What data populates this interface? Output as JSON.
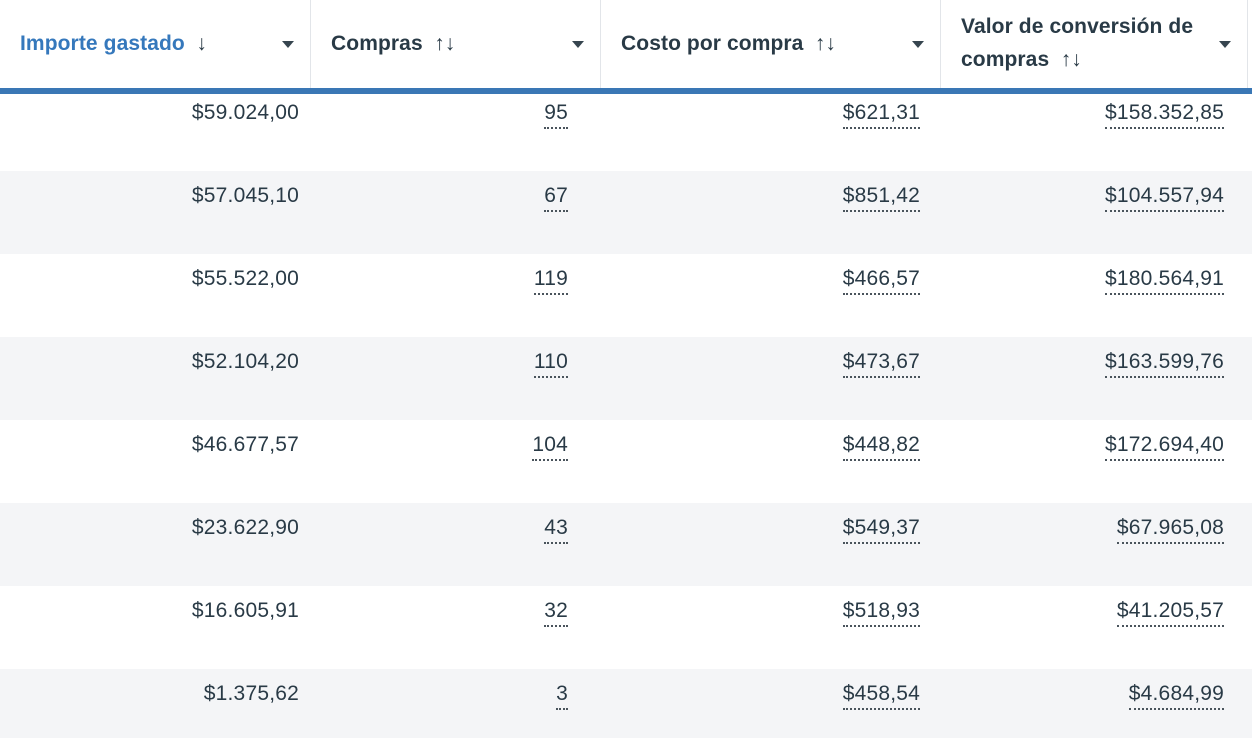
{
  "table": {
    "columns": [
      {
        "id": "importe_gastado",
        "label": "Importe gastado",
        "sort_indicator": "↓",
        "sorted": true
      },
      {
        "id": "compras",
        "label": "Compras",
        "sort_indicator": "↑↓",
        "sorted": false
      },
      {
        "id": "costo_por_compra",
        "label": "Costo por compra",
        "sort_indicator": "↑↓",
        "sorted": false
      },
      {
        "id": "valor_de_conversion_de_compras",
        "label": "Valor de conversión de compras",
        "sort_indicator": "↑↓",
        "sorted": false
      }
    ],
    "rows": [
      [
        "$59.024,00",
        "95",
        "$621,31",
        "$158.352,85"
      ],
      [
        "$57.045,10",
        "67",
        "$851,42",
        "$104.557,94"
      ],
      [
        "$55.522,00",
        "119",
        "$466,57",
        "$180.564,91"
      ],
      [
        "$52.104,20",
        "110",
        "$473,67",
        "$163.599,76"
      ],
      [
        "$46.677,57",
        "104",
        "$448,82",
        "$172.694,40"
      ],
      [
        "$23.622,90",
        "43",
        "$549,37",
        "$67.965,08"
      ],
      [
        "$16.605,91",
        "32",
        "$518,93",
        "$41.205,57"
      ],
      [
        "$1.375,62",
        "3",
        "$458,54",
        "$4.684,99"
      ]
    ]
  },
  "colors": {
    "accent_bar_blue": "#3a77b5",
    "sorted_column_blue": "#3578bc",
    "text_dark": "#293a46",
    "row_stripe_gray": "#f4f5f7",
    "separator_gray": "#e2e5e9",
    "underline_dot_gray": "#4a545c",
    "header_background": "#ffffff"
  }
}
